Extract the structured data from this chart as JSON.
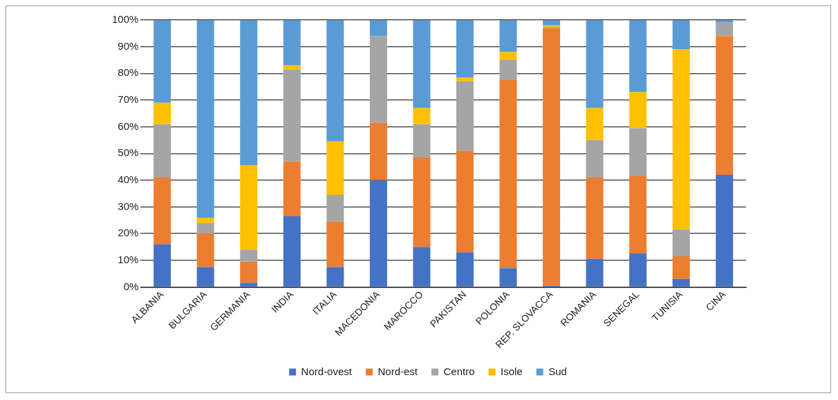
{
  "chart_data": {
    "type": "bar",
    "stacked": true,
    "categories": [
      "ALBANIA",
      "BULGARIA",
      "GERMANIA",
      "INDIA",
      "ITALIA",
      "MACEDONIA",
      "MAROCCO",
      "PAKISTAN",
      "POLONIA",
      "REP. SLOVACCA",
      "ROMANIA",
      "SENEGAL",
      "TUNISIA",
      "CINA"
    ],
    "series": [
      {
        "name": "Nord-ovest",
        "color": "#4472c4",
        "values": [
          16,
          7.5,
          1.5,
          26.5,
          7.5,
          40,
          15,
          13,
          7,
          0.5,
          10.5,
          12.5,
          3,
          42
        ]
      },
      {
        "name": "Nord-est",
        "color": "#ed7d31",
        "values": [
          25,
          12.5,
          8,
          20.5,
          17,
          21.5,
          33.5,
          38,
          70.5,
          96.5,
          30.5,
          29,
          8.5,
          52
        ]
      },
      {
        "name": "Centro",
        "color": "#a5a5a5",
        "values": [
          20,
          4,
          4.5,
          34.5,
          10,
          32.5,
          12.5,
          26,
          7.5,
          0.5,
          14,
          18,
          10,
          5
        ]
      },
      {
        "name": "Isole",
        "color": "#ffc000",
        "values": [
          8,
          2,
          31.5,
          1.5,
          20,
          0,
          6,
          1.5,
          3,
          0.5,
          12,
          13.5,
          67.5,
          0
        ]
      },
      {
        "name": "Sud",
        "color": "#5b9bd5",
        "values": [
          31,
          74,
          54.5,
          17,
          45.5,
          6,
          33,
          21.5,
          12,
          2,
          33,
          27,
          11,
          1
        ]
      }
    ],
    "ylim": [
      0,
      100
    ],
    "yticks": [
      {
        "value": 0,
        "label": "0%"
      },
      {
        "value": 10,
        "label": "10%"
      },
      {
        "value": 20,
        "label": "20%"
      },
      {
        "value": 30,
        "label": "30%"
      },
      {
        "value": 40,
        "label": "40%"
      },
      {
        "value": 50,
        "label": "50%"
      },
      {
        "value": 60,
        "label": "60%"
      },
      {
        "value": 70,
        "label": "70%"
      },
      {
        "value": 80,
        "label": "80%"
      },
      {
        "value": 90,
        "label": "90%"
      },
      {
        "value": 100,
        "label": "100%"
      }
    ],
    "grid": "y",
    "legend": "bottom"
  }
}
